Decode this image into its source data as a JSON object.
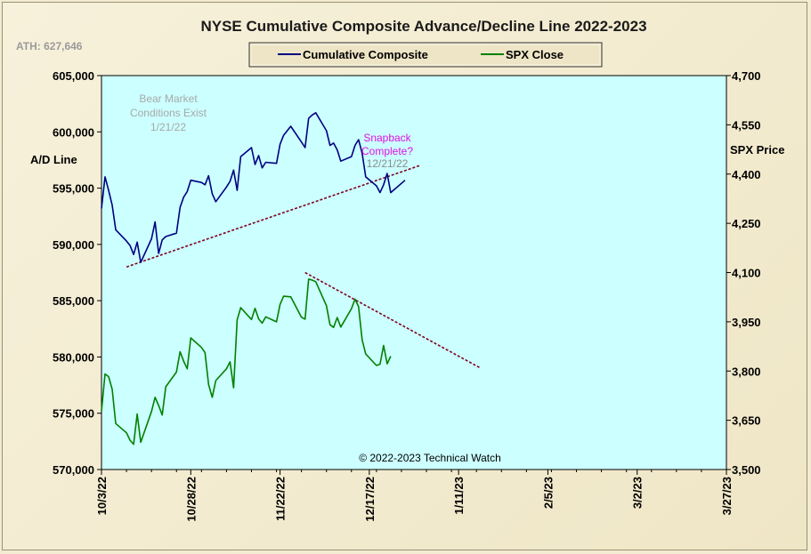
{
  "chart_data": {
    "type": "line",
    "title": "NYSE Cumulative  Composite Advance/Decline  Line 2022-2023",
    "ath_label": "ATH: 627,646",
    "y_left_label": "A/D Line",
    "y_right_label": "SPX Price",
    "y_left_range": [
      570000,
      605000
    ],
    "y_right_range": [
      3500,
      4700
    ],
    "y_left_ticks": [
      605000,
      600000,
      595000,
      590000,
      585000,
      580000,
      575000,
      570000
    ],
    "y_left_tick_labels": [
      "605,000",
      "600,000",
      "595,000",
      "590,000",
      "585,000",
      "580,000",
      "575,000",
      "570,000"
    ],
    "y_right_ticks": [
      4700,
      4550,
      4400,
      4250,
      4100,
      3950,
      3800,
      3650,
      3500
    ],
    "y_right_tick_labels": [
      "4,700",
      "4,550",
      "4,400",
      "4,250",
      "4,100",
      "3,950",
      "3,800",
      "3,650",
      "3,500"
    ],
    "x_range": [
      "2022-10-03",
      "2023-03-27"
    ],
    "x_ticks": [
      "2022-10-03",
      "2022-10-28",
      "2022-11-22",
      "2022-12-17",
      "2023-01-11",
      "2023-02-05",
      "2023-03-02",
      "2023-03-27"
    ],
    "x_tick_labels": [
      "10/3/22",
      "10/28/22",
      "11/22/22",
      "12/17/22",
      "1/11/23",
      "2/5/23",
      "3/2/23",
      "3/27/23"
    ],
    "legend": [
      "Cumulative Composite",
      "SPX Close"
    ],
    "colors": {
      "ad_line": "#000080",
      "spx": "#008000",
      "trendline": "#800020",
      "plot_bg": "#ccffff",
      "annotation_magenta": "#e010e0"
    },
    "annotations": {
      "bear_line1": "Bear Market",
      "bear_line2": "Conditions Exist",
      "bear_line3": "1/21/22",
      "snap_line1": "Snapback",
      "snap_line2": "Complete?",
      "snap_line3": "12/21/22"
    },
    "copyright": "© 2022-2023  Technical Watch",
    "series": [
      {
        "name": "Cumulative Composite",
        "axis": "left",
        "points": [
          [
            "2022-10-03",
            593200
          ],
          [
            "2022-10-04",
            596000
          ],
          [
            "2022-10-05",
            594800
          ],
          [
            "2022-10-06",
            593500
          ],
          [
            "2022-10-07",
            591300
          ],
          [
            "2022-10-10",
            590300
          ],
          [
            "2022-10-11",
            589900
          ],
          [
            "2022-10-12",
            589100
          ],
          [
            "2022-10-13",
            590200
          ],
          [
            "2022-10-14",
            588400
          ],
          [
            "2022-10-17",
            590500
          ],
          [
            "2022-10-18",
            592000
          ],
          [
            "2022-10-19",
            589200
          ],
          [
            "2022-10-20",
            590400
          ],
          [
            "2022-10-21",
            590700
          ],
          [
            "2022-10-24",
            591000
          ],
          [
            "2022-10-25",
            593300
          ],
          [
            "2022-10-26",
            594200
          ],
          [
            "2022-10-27",
            594700
          ],
          [
            "2022-10-28",
            595700
          ],
          [
            "2022-10-31",
            595500
          ],
          [
            "2022-11-01",
            595300
          ],
          [
            "2022-11-02",
            596100
          ],
          [
            "2022-11-03",
            594500
          ],
          [
            "2022-11-04",
            593800
          ],
          [
            "2022-11-07",
            595100
          ],
          [
            "2022-11-08",
            595600
          ],
          [
            "2022-11-09",
            596600
          ],
          [
            "2022-11-10",
            594800
          ],
          [
            "2022-11-11",
            597800
          ],
          [
            "2022-11-14",
            598600
          ],
          [
            "2022-11-15",
            597100
          ],
          [
            "2022-11-16",
            597900
          ],
          [
            "2022-11-17",
            596800
          ],
          [
            "2022-11-18",
            597300
          ],
          [
            "2022-11-21",
            597200
          ],
          [
            "2022-11-22",
            598900
          ],
          [
            "2022-11-23",
            599700
          ],
          [
            "2022-11-25",
            600500
          ],
          [
            "2022-11-28",
            599100
          ],
          [
            "2022-11-29",
            598600
          ],
          [
            "2022-11-30",
            601200
          ],
          [
            "2022-12-01",
            601500
          ],
          [
            "2022-12-02",
            601700
          ],
          [
            "2022-12-05",
            600100
          ],
          [
            "2022-12-06",
            598800
          ],
          [
            "2022-12-07",
            599000
          ],
          [
            "2022-12-08",
            598400
          ],
          [
            "2022-12-09",
            597400
          ],
          [
            "2022-12-12",
            597800
          ],
          [
            "2022-12-13",
            598800
          ],
          [
            "2022-12-14",
            599300
          ],
          [
            "2022-12-15",
            598100
          ],
          [
            "2022-12-16",
            596000
          ],
          [
            "2022-12-19",
            595200
          ],
          [
            "2022-12-20",
            594600
          ],
          [
            "2022-12-21",
            595300
          ],
          [
            "2022-12-22",
            596300
          ],
          [
            "2022-12-23",
            594600
          ],
          [
            "2022-12-27",
            595700
          ]
        ]
      },
      {
        "name": "SPX Close",
        "axis": "right",
        "points": [
          [
            "2022-10-03",
            3678
          ],
          [
            "2022-10-04",
            3791
          ],
          [
            "2022-10-05",
            3783
          ],
          [
            "2022-10-06",
            3745
          ],
          [
            "2022-10-07",
            3640
          ],
          [
            "2022-10-10",
            3612
          ],
          [
            "2022-10-11",
            3589
          ],
          [
            "2022-10-12",
            3577
          ],
          [
            "2022-10-13",
            3669
          ],
          [
            "2022-10-14",
            3583
          ],
          [
            "2022-10-17",
            3677
          ],
          [
            "2022-10-18",
            3720
          ],
          [
            "2022-10-19",
            3695
          ],
          [
            "2022-10-20",
            3666
          ],
          [
            "2022-10-21",
            3752
          ],
          [
            "2022-10-24",
            3797
          ],
          [
            "2022-10-25",
            3859
          ],
          [
            "2022-10-26",
            3830
          ],
          [
            "2022-10-27",
            3807
          ],
          [
            "2022-10-28",
            3901
          ],
          [
            "2022-10-31",
            3872
          ],
          [
            "2022-11-01",
            3856
          ],
          [
            "2022-11-02",
            3759
          ],
          [
            "2022-11-03",
            3720
          ],
          [
            "2022-11-04",
            3771
          ],
          [
            "2022-11-07",
            3807
          ],
          [
            "2022-11-08",
            3828
          ],
          [
            "2022-11-09",
            3749
          ],
          [
            "2022-11-10",
            3956
          ],
          [
            "2022-11-11",
            3993
          ],
          [
            "2022-11-14",
            3957
          ],
          [
            "2022-11-15",
            3991
          ],
          [
            "2022-11-16",
            3959
          ],
          [
            "2022-11-17",
            3946
          ],
          [
            "2022-11-18",
            3965
          ],
          [
            "2022-11-21",
            3950
          ],
          [
            "2022-11-22",
            4003
          ],
          [
            "2022-11-23",
            4028
          ],
          [
            "2022-11-25",
            4026
          ],
          [
            "2022-11-28",
            3964
          ],
          [
            "2022-11-29",
            3958
          ],
          [
            "2022-11-30",
            4080
          ],
          [
            "2022-12-01",
            4077
          ],
          [
            "2022-12-02",
            4072
          ],
          [
            "2022-12-05",
            3999
          ],
          [
            "2022-12-06",
            3941
          ],
          [
            "2022-12-07",
            3933
          ],
          [
            "2022-12-08",
            3963
          ],
          [
            "2022-12-09",
            3934
          ],
          [
            "2022-12-12",
            3990
          ],
          [
            "2022-12-13",
            4019
          ],
          [
            "2022-12-14",
            3996
          ],
          [
            "2022-12-15",
            3895
          ],
          [
            "2022-12-16",
            3852
          ],
          [
            "2022-12-19",
            3817
          ],
          [
            "2022-12-20",
            3821
          ],
          [
            "2022-12-21",
            3878
          ],
          [
            "2022-12-22",
            3822
          ],
          [
            "2022-12-23",
            3845
          ]
        ]
      },
      {
        "name": "A/D Trendline",
        "axis": "left",
        "style": "dotted",
        "points": [
          [
            "2022-10-10",
            588000
          ],
          [
            "2022-12-31",
            597000
          ]
        ]
      },
      {
        "name": "SPX Trendline",
        "axis": "right",
        "style": "dotted",
        "points": [
          [
            "2022-11-29",
            4100
          ],
          [
            "2023-01-17",
            3810
          ]
        ]
      }
    ]
  }
}
